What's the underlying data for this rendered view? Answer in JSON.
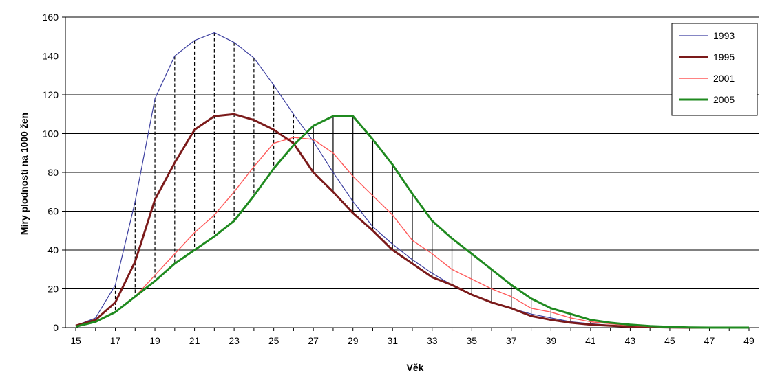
{
  "chart_data": {
    "type": "line",
    "title": "",
    "xlabel": "Věk",
    "ylabel": "Míry plodnosti na 1000 žen",
    "xlim": [
      15,
      49
    ],
    "ylim": [
      0,
      160
    ],
    "x_ticks": [
      "15",
      "17",
      "19",
      "21",
      "23",
      "25",
      "27",
      "29",
      "31",
      "33",
      "35",
      "37",
      "39",
      "41",
      "43",
      "45",
      "47",
      "49"
    ],
    "y_ticks": [
      "0",
      "20",
      "40",
      "60",
      "80",
      "100",
      "120",
      "140",
      "160"
    ],
    "grid": "horizontal",
    "legend_position": "top-right",
    "colors": {
      "1993": "#3c3fa0",
      "1995": "#7b1a1a",
      "2001": "#ff5a5a",
      "2005": "#1f8a1f"
    },
    "x": [
      15,
      16,
      17,
      18,
      19,
      20,
      21,
      22,
      23,
      24,
      25,
      26,
      27,
      28,
      29,
      30,
      31,
      32,
      33,
      34,
      35,
      36,
      37,
      38,
      39,
      40,
      41,
      42,
      43,
      44,
      45,
      46,
      47,
      48,
      49
    ],
    "series": [
      {
        "name": "1993",
        "values": [
          1,
          5,
          22,
          65,
          118,
          140,
          148,
          152,
          147,
          139,
          125,
          110,
          96,
          80,
          65,
          52,
          43,
          35,
          28,
          22,
          17,
          13,
          10,
          7,
          5,
          3,
          2,
          1.2,
          0.8,
          0.4,
          0.2,
          0.1,
          0,
          0,
          0
        ]
      },
      {
        "name": "1995",
        "values": [
          1,
          4,
          13,
          34,
          66,
          85,
          102,
          109,
          110,
          107,
          102,
          95,
          80,
          70,
          59,
          50,
          40,
          33,
          26,
          22,
          17,
          13,
          10,
          6,
          4,
          2.5,
          1.5,
          1,
          0.5,
          0.3,
          0.1,
          0,
          0,
          0,
          0
        ]
      },
      {
        "name": "2001",
        "values": [
          0.5,
          3,
          8,
          16,
          27,
          38,
          49,
          58,
          70,
          83,
          95,
          98,
          97,
          90,
          78,
          68,
          58,
          45,
          38,
          30,
          25,
          20,
          16,
          10,
          8,
          5,
          3,
          2,
          1,
          0.5,
          0.2,
          0.1,
          0,
          0,
          0
        ]
      },
      {
        "name": "2005",
        "values": [
          0.5,
          3,
          8,
          16,
          24,
          33,
          40,
          47,
          55,
          68,
          82,
          94,
          104,
          109,
          109,
          97,
          84,
          69,
          55,
          46,
          38,
          30,
          22,
          15,
          10,
          7,
          4,
          2.5,
          1.5,
          0.8,
          0.4,
          0.1,
          0,
          0,
          0
        ]
      }
    ]
  }
}
